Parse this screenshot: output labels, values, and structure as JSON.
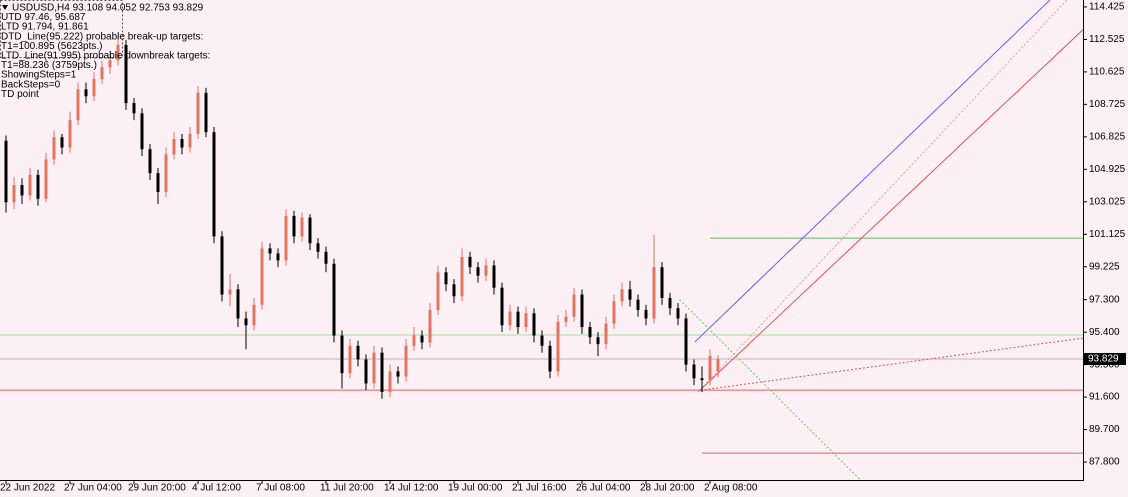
{
  "chart_data": {
    "type": "candlestick",
    "title": "USDUSD,H4  93.108 94.052 92.753 93.829",
    "annotations": [
      "UTD 97.46, 95.687",
      "LTD 91.794, 91.861",
      "DTD_Line(95.222) probable break-up targets:",
      "T1=100.895 (5623pts.)",
      "LTD_Line(91.995) probable downbreak targets:",
      "T1=88.236 (3759pts.)",
      "ShowingSteps=1",
      "BackSteps=0",
      "TD point"
    ],
    "categories": [
      "22 Jun 2022",
      null,
      null,
      null,
      null,
      null,
      null,
      null,
      "27 Jun 04:00",
      null,
      null,
      null,
      null,
      null,
      null,
      null,
      "29 Jun 20:00",
      null,
      null,
      null,
      null,
      null,
      null,
      null,
      "4 Jul 12:00",
      null,
      null,
      null,
      null,
      null,
      null,
      null,
      "7 Jul 08:00",
      null,
      null,
      null,
      null,
      null,
      null,
      null,
      "11 Jul 20:00",
      null,
      null,
      null,
      null,
      null,
      null,
      null,
      "14 Jul 12:00",
      null,
      null,
      null,
      null,
      null,
      null,
      null,
      "19 Jul 00:00",
      null,
      null,
      null,
      null,
      null,
      null,
      null,
      "21 Jul 16:00",
      null,
      null,
      null,
      null,
      null,
      null,
      null,
      "26 Jul 04:00",
      null,
      null,
      null,
      null,
      null,
      null,
      null,
      "28 Jul 20:00",
      null,
      null,
      null,
      null,
      null,
      null,
      null,
      "2 Aug 08:00",
      null
    ],
    "open": [
      106.6,
      103.0,
      104.0,
      103.4,
      104.6,
      103.2,
      105.5,
      106.8,
      106.2,
      107.8,
      109.6,
      109.2,
      110.2,
      110.9,
      111.3,
      112.2,
      108.8,
      108.2,
      106.1,
      104.7,
      103.6,
      105.8,
      106.7,
      106.2,
      107.0,
      109.4,
      107.1,
      101.0,
      97.6,
      97.9,
      96.2,
      95.8,
      97.0,
      100.3,
      100.0,
      99.6,
      102.2,
      101.0,
      102.1,
      100.6,
      100.1,
      99.4,
      95.2,
      93.0,
      94.6,
      93.8,
      92.4,
      94.2,
      91.9,
      93.1,
      92.8,
      94.6,
      95.2,
      94.8,
      96.7,
      98.9,
      98.2,
      97.5,
      99.8,
      99.2,
      98.7,
      99.3,
      98.0,
      95.8,
      96.6,
      95.7,
      96.5,
      95.2,
      94.6,
      93.1,
      96.0,
      96.3,
      97.6,
      95.7,
      95.1,
      94.7,
      95.9,
      97.2,
      97.9,
      97.3,
      96.7,
      96.2,
      99.2,
      97.4,
      96.8,
      96.2,
      93.5,
      92.7,
      92.6,
      93.108
    ],
    "high": [
      106.9,
      104.5,
      104.4,
      105.0,
      104.9,
      105.9,
      107.2,
      107.0,
      108.3,
      110.0,
      110.0,
      110.6,
      111.3,
      111.8,
      112.8,
      112.5,
      109.1,
      108.5,
      106.4,
      105.0,
      106.2,
      107.1,
      107.0,
      107.4,
      109.8,
      109.7,
      107.4,
      101.3,
      98.8,
      98.2,
      96.6,
      97.4,
      100.7,
      100.6,
      100.3,
      102.6,
      102.5,
      102.4,
      102.3,
      100.9,
      100.4,
      99.7,
      95.5,
      95.0,
      94.9,
      94.1,
      94.6,
      94.5,
      93.5,
      93.4,
      95.0,
      95.7,
      95.5,
      97.1,
      99.3,
      99.2,
      98.5,
      100.3,
      100.1,
      99.5,
      99.7,
      99.6,
      98.3,
      97.0,
      96.9,
      96.9,
      96.8,
      95.5,
      94.9,
      96.4,
      96.7,
      98.0,
      97.9,
      96.0,
      95.4,
      96.3,
      97.6,
      98.3,
      98.4,
      97.6,
      97.0,
      101.1,
      99.5,
      97.7,
      97.1,
      96.5,
      93.8,
      93.4,
      94.4,
      94.052
    ],
    "low": [
      102.4,
      102.6,
      102.9,
      103.1,
      102.8,
      103.0,
      105.2,
      105.8,
      105.9,
      107.5,
      108.8,
      108.9,
      109.9,
      110.5,
      111.0,
      108.4,
      107.8,
      105.7,
      104.3,
      102.9,
      103.3,
      105.5,
      105.8,
      105.9,
      106.7,
      106.8,
      100.6,
      97.2,
      96.9,
      95.7,
      94.4,
      95.5,
      96.7,
      99.6,
      99.2,
      99.3,
      100.6,
      100.7,
      100.2,
      99.7,
      98.9,
      94.8,
      92.1,
      92.7,
      93.4,
      92.0,
      92.1,
      91.5,
      91.6,
      92.4,
      92.5,
      94.3,
      94.4,
      94.5,
      96.4,
      97.8,
      97.1,
      97.2,
      98.8,
      98.3,
      98.4,
      97.6,
      95.4,
      95.5,
      95.3,
      95.4,
      94.8,
      94.2,
      92.7,
      92.8,
      95.7,
      96.0,
      95.3,
      94.7,
      94.0,
      94.4,
      95.6,
      96.9,
      96.9,
      96.3,
      95.8,
      95.9,
      97.0,
      96.4,
      95.8,
      93.1,
      92.3,
      91.9,
      92.3,
      92.753
    ],
    "close": [
      103.0,
      104.0,
      103.4,
      104.6,
      103.2,
      105.5,
      106.8,
      106.2,
      107.8,
      109.6,
      109.2,
      110.2,
      110.9,
      111.3,
      112.2,
      108.8,
      108.2,
      106.1,
      104.7,
      103.6,
      105.8,
      106.7,
      106.2,
      107.0,
      109.4,
      107.1,
      101.0,
      97.6,
      97.9,
      96.2,
      95.8,
      97.0,
      100.3,
      100.0,
      99.6,
      102.2,
      101.0,
      102.1,
      100.6,
      100.1,
      99.4,
      95.2,
      93.0,
      94.6,
      93.8,
      92.4,
      94.2,
      91.9,
      93.1,
      92.8,
      94.6,
      95.2,
      94.8,
      96.7,
      98.9,
      98.2,
      97.5,
      99.8,
      99.2,
      98.7,
      99.3,
      98.0,
      95.8,
      96.6,
      95.7,
      96.5,
      95.2,
      94.6,
      93.1,
      96.0,
      96.3,
      97.6,
      95.7,
      95.1,
      94.7,
      95.9,
      97.2,
      97.9,
      97.3,
      96.7,
      96.2,
      99.2,
      97.4,
      96.8,
      96.2,
      93.5,
      92.7,
      92.6,
      94.0,
      93.829
    ],
    "up_color": "#e07565",
    "down_color": "#000000",
    "last_price": 93.829,
    "hlines": [
      {
        "value": 100.9,
        "color": "#5fb85f",
        "start": 88
      },
      {
        "value": 95.23,
        "color": "#a8dca0"
      },
      {
        "value": 93.829,
        "color": "#c8b0b8"
      },
      {
        "value": 92.01,
        "color": "#e06060"
      },
      {
        "value": 88.32,
        "color": "#e06060",
        "start": 87
      }
    ],
    "trendlines": [
      {
        "from": [
          86.1,
          94.82
        ],
        "to": [
          130.5,
          114.83
        ],
        "color": "#6060ff",
        "dashed": false
      },
      {
        "from": [
          86.5,
          91.9
        ],
        "to": [
          134.6,
          113.08
        ],
        "color": "#e05050",
        "dashed": false
      },
      {
        "from": [
          86.5,
          91.9
        ],
        "to": [
          132.6,
          114.83
        ],
        "color": "#e8a0a0",
        "dashed": true
      },
      {
        "from": [
          86.8,
          92.0
        ],
        "to": [
          134.6,
          95.05
        ],
        "color": "#e05050",
        "dashed": true
      },
      {
        "from": [
          84.2,
          97.3
        ],
        "to": [
          106.8,
          86.75
        ],
        "color": "#70c070",
        "dashed": true
      }
    ],
    "ylim": [
      86.75,
      114.83
    ],
    "yticks": [
      114.425,
      112.525,
      110.625,
      108.725,
      106.825,
      104.925,
      103.025,
      101.125,
      99.225,
      {
        "value": 97.3,
        "label": "97.300"
      },
      {
        "value": 95.4,
        "label": "95.400"
      },
      {
        "value": 93.5,
        "label": "93.500"
      },
      {
        "value": 91.6,
        "label": "91.600"
      },
      {
        "value": 89.7,
        "label": "89.700"
      },
      {
        "value": 87.8,
        "label": "87.800"
      }
    ]
  }
}
